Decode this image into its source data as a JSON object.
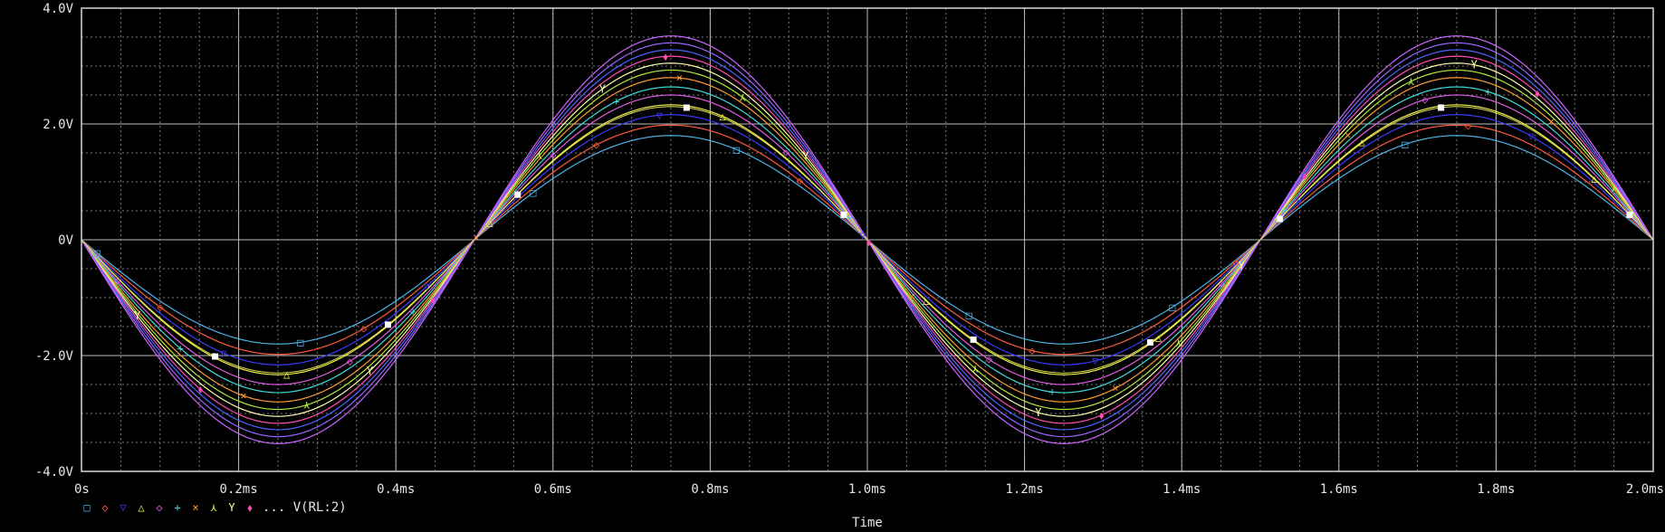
{
  "chart_data": {
    "type": "line",
    "xlabel": "Time",
    "ylabel": "",
    "xlim": [
      0,
      2.0
    ],
    "ylim": [
      -4.0,
      4.0
    ],
    "x_ticks": [
      {
        "value": 0,
        "label": "0s"
      },
      {
        "value": 0.2,
        "label": "0.2ms"
      },
      {
        "value": 0.4,
        "label": "0.4ms"
      },
      {
        "value": 0.6,
        "label": "0.6ms"
      },
      {
        "value": 0.8,
        "label": "0.8ms"
      },
      {
        "value": 1.0,
        "label": "1.0ms"
      },
      {
        "value": 1.2,
        "label": "1.2ms"
      },
      {
        "value": 1.4,
        "label": "1.4ms"
      },
      {
        "value": 1.6,
        "label": "1.6ms"
      },
      {
        "value": 1.8,
        "label": "1.8ms"
      },
      {
        "value": 2.0,
        "label": "2.0ms"
      }
    ],
    "y_ticks": [
      {
        "value": 4.0,
        "label": "4.0V"
      },
      {
        "value": 2.0,
        "label": "2.0V"
      },
      {
        "value": 0,
        "label": "0V"
      },
      {
        "value": -2.0,
        "label": "-2.0V"
      },
      {
        "value": -4.0,
        "label": "-4.0V"
      }
    ],
    "grid": true,
    "background": "#000000",
    "waveform": "sine",
    "frequency_khz": 1,
    "phase_inverted": true,
    "legend": {
      "placement": "bottom-left",
      "markers": [
        "□",
        "◇",
        "▽",
        "△",
        "◇",
        "+",
        "×",
        "⋏",
        "Y",
        "⬧"
      ],
      "suffix": "... V(RL:2)"
    },
    "series": [
      {
        "amplitude": 1.8,
        "color": "#4db3e6",
        "marker": "□"
      },
      {
        "amplitude": 1.98,
        "color": "#ff5a3c",
        "marker": "◇"
      },
      {
        "amplitude": 2.16,
        "color": "#3b3bff",
        "marker": "▽"
      },
      {
        "amplitude": 2.33,
        "color": "#f2f24a",
        "marker": "△"
      },
      {
        "amplitude": 2.5,
        "color": "#e55be5",
        "marker": "◇"
      },
      {
        "amplitude": 2.64,
        "color": "#40d9d9",
        "marker": "+"
      },
      {
        "amplitude": 2.8,
        "color": "#ff9a33",
        "marker": "×"
      },
      {
        "amplitude": 2.93,
        "color": "#b3e63c",
        "marker": "⋏"
      },
      {
        "amplitude": 3.05,
        "color": "#ffffaa",
        "marker": "Y"
      },
      {
        "amplitude": 3.17,
        "color": "#ff4db3",
        "marker": "⬧"
      },
      {
        "amplitude": 3.28,
        "color": "#4d66ff",
        "marker": ""
      },
      {
        "amplitude": 3.4,
        "color": "#9966ff",
        "marker": ""
      },
      {
        "amplitude": 3.52,
        "color": "#cc66ff",
        "marker": ""
      }
    ],
    "highlight": {
      "amplitude": 2.3,
      "color": "#ffffff",
      "marker": "■",
      "x_points": [
        0.17,
        0.39,
        0.555,
        0.77,
        0.97,
        1.135,
        1.36,
        1.525,
        1.73,
        1.97
      ]
    }
  }
}
